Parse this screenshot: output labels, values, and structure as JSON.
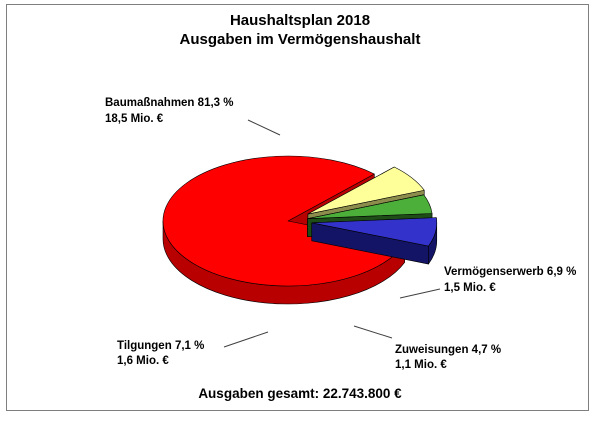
{
  "chart_data": {
    "type": "pie",
    "title": "Haushaltsplan 2018",
    "subtitle": "Ausgaben im Vermögenshaushalt",
    "slices": [
      {
        "name": "Baumaßnahmen",
        "percent_label": "81,3 %",
        "percent": 81.3,
        "amount_label": "18,5 Mio. €",
        "amount_mio": 18.5,
        "color": "#ff0000",
        "side_color": "#b80000"
      },
      {
        "name": "Vermögenserwerb",
        "percent_label": "6,9 %",
        "percent": 6.9,
        "amount_label": "1,5 Mio. €",
        "amount_mio": 1.5,
        "color": "#ffff99",
        "side_color": "#8c8c4c"
      },
      {
        "name": "Zuweisungen ",
        "percent_label": "4,7 %",
        "percent": 4.7,
        "amount_label": "1,1 Mio. €",
        "amount_mio": 1.1,
        "color": "#4caf3a",
        "side_color": "#1f4d17"
      },
      {
        "name": "Tilgungen",
        "percent_label": "7,1 %",
        "percent": 7.1,
        "amount_label": "1,6 Mio. €",
        "amount_mio": 1.6,
        "color": "#3333cc",
        "side_color": "#141466"
      }
    ],
    "total_label": "Ausgaben gesamt: 22.743.800 €",
    "style": "3d-exploded"
  }
}
